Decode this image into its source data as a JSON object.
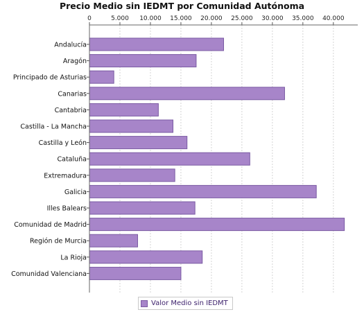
{
  "chart_data": {
    "type": "bar",
    "orientation": "horizontal",
    "title": "Precio Medio sin IEDMT por Comunidad Autónoma",
    "categories": [
      "Andalucía",
      "Aragón",
      "Principado de Asturias",
      "Canarias",
      "Cantabria",
      "Castilla - La Mancha",
      "Castilla y León",
      "Cataluña",
      "Extremadura",
      "Galicia",
      "Illes Balears",
      "Comunidad de Madrid",
      "Región de Murcia",
      "La Rioja",
      "Comunidad Valenciana"
    ],
    "series": [
      {
        "name": "Valor Medio sin IEDMT",
        "values": [
          22000,
          17500,
          4000,
          32000,
          11300,
          13700,
          16000,
          26300,
          14000,
          37200,
          17300,
          41800,
          7900,
          18500,
          15000
        ]
      }
    ],
    "xlim": [
      0,
      44000
    ],
    "xticks": [
      "0",
      "5.000",
      "10.000",
      "15.000",
      "20.000",
      "25.000",
      "30.000",
      "35.000",
      "40.000"
    ],
    "xtick_values": [
      0,
      5000,
      10000,
      15000,
      20000,
      25000,
      30000,
      35000,
      40000
    ],
    "grid": true,
    "legend_position": "bottom",
    "bar_color": "#a785c9",
    "bar_border_color": "#7a5aa3",
    "grid_color": "#d4d4d4"
  }
}
